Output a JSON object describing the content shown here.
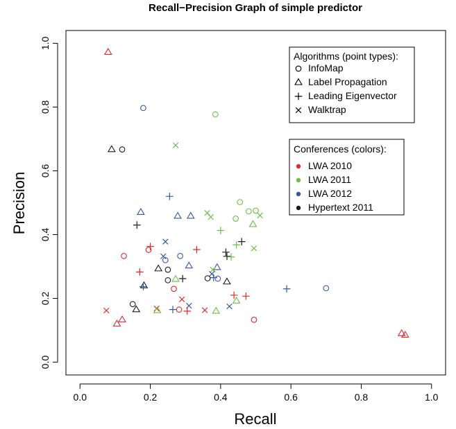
{
  "chart_data": {
    "type": "scatter",
    "title": "Recall−Precision Graph of simple predictor",
    "xlabel": "Recall",
    "ylabel": "Precision",
    "xlim": [
      -0.04,
      1.04
    ],
    "ylim": [
      -0.04,
      1.04
    ],
    "xticks": [
      "0.0",
      "0.2",
      "0.4",
      "0.6",
      "0.8",
      "1.0"
    ],
    "yticks": [
      "0.0",
      "0.2",
      "0.4",
      "0.6",
      "0.8",
      "1.0"
    ],
    "grid": false,
    "shape_legend": {
      "title": "Algorithms (point types):",
      "position": "top-right",
      "items": [
        {
          "label": "InfoMap",
          "shape": "circle"
        },
        {
          "label": "Label Propagation",
          "shape": "triangle"
        },
        {
          "label": "Leading Eigenvector",
          "shape": "plus"
        },
        {
          "label": "Walktrap",
          "shape": "cross"
        }
      ]
    },
    "color_legend": {
      "title": "Conferences (colors):",
      "position": "right",
      "items": [
        {
          "label": "LWA 2010",
          "color": "#e8262b"
        },
        {
          "label": "LWA 2011",
          "color": "#6cbf45"
        },
        {
          "label": "LWA 2012",
          "color": "#3557a5"
        },
        {
          "label": "Hypertext 2011",
          "color": "#1a1a1a"
        }
      ]
    },
    "points": [
      {
        "x": 0.08,
        "y": 0.972,
        "shape": "triangle",
        "color": "LWA 2010"
      },
      {
        "x": 0.18,
        "y": 0.797,
        "shape": "circle",
        "color": "LWA 2012"
      },
      {
        "x": 0.385,
        "y": 0.777,
        "shape": "circle",
        "color": "LWA 2011"
      },
      {
        "x": 0.09,
        "y": 0.667,
        "shape": "triangle",
        "color": "Hypertext 2011"
      },
      {
        "x": 0.12,
        "y": 0.667,
        "shape": "circle",
        "color": "Hypertext 2011"
      },
      {
        "x": 0.272,
        "y": 0.68,
        "shape": "cross",
        "color": "LWA 2011"
      },
      {
        "x": 0.255,
        "y": 0.52,
        "shape": "plus",
        "color": "LWA 2012"
      },
      {
        "x": 0.455,
        "y": 0.502,
        "shape": "circle",
        "color": "LWA 2011"
      },
      {
        "x": 0.173,
        "y": 0.47,
        "shape": "triangle",
        "color": "LWA 2012"
      },
      {
        "x": 0.48,
        "y": 0.473,
        "shape": "circle",
        "color": "LWA 2011"
      },
      {
        "x": 0.5,
        "y": 0.475,
        "shape": "circle",
        "color": "LWA 2011"
      },
      {
        "x": 0.362,
        "y": 0.468,
        "shape": "cross",
        "color": "LWA 2011"
      },
      {
        "x": 0.278,
        "y": 0.458,
        "shape": "triangle",
        "color": "LWA 2012"
      },
      {
        "x": 0.315,
        "y": 0.458,
        "shape": "triangle",
        "color": "LWA 2012"
      },
      {
        "x": 0.372,
        "y": 0.455,
        "shape": "cross",
        "color": "LWA 2011"
      },
      {
        "x": 0.512,
        "y": 0.46,
        "shape": "cross",
        "color": "LWA 2011"
      },
      {
        "x": 0.443,
        "y": 0.45,
        "shape": "circle",
        "color": "LWA 2011"
      },
      {
        "x": 0.492,
        "y": 0.432,
        "shape": "triangle",
        "color": "LWA 2011"
      },
      {
        "x": 0.162,
        "y": 0.43,
        "shape": "plus",
        "color": "Hypertext 2011"
      },
      {
        "x": 0.4,
        "y": 0.413,
        "shape": "plus",
        "color": "LWA 2011"
      },
      {
        "x": 0.243,
        "y": 0.378,
        "shape": "cross",
        "color": "LWA 2012"
      },
      {
        "x": 0.46,
        "y": 0.378,
        "shape": "plus",
        "color": "Hypertext 2011"
      },
      {
        "x": 0.445,
        "y": 0.368,
        "shape": "plus",
        "color": "LWA 2011"
      },
      {
        "x": 0.195,
        "y": 0.352,
        "shape": "circle",
        "color": "LWA 2010"
      },
      {
        "x": 0.2,
        "y": 0.363,
        "shape": "plus",
        "color": "LWA 2010"
      },
      {
        "x": 0.332,
        "y": 0.353,
        "shape": "plus",
        "color": "LWA 2010"
      },
      {
        "x": 0.415,
        "y": 0.345,
        "shape": "plus",
        "color": "Hypertext 2011"
      },
      {
        "x": 0.495,
        "y": 0.357,
        "shape": "cross",
        "color": "LWA 2011"
      },
      {
        "x": 0.125,
        "y": 0.333,
        "shape": "circle",
        "color": "LWA 2010"
      },
      {
        "x": 0.285,
        "y": 0.333,
        "shape": "circle",
        "color": "LWA 2012"
      },
      {
        "x": 0.237,
        "y": 0.332,
        "shape": "cross",
        "color": "LWA 2012"
      },
      {
        "x": 0.243,
        "y": 0.32,
        "shape": "circle",
        "color": "LWA 2012"
      },
      {
        "x": 0.418,
        "y": 0.332,
        "shape": "plus",
        "color": "Hypertext 2011"
      },
      {
        "x": 0.43,
        "y": 0.33,
        "shape": "plus",
        "color": "LWA 2011"
      },
      {
        "x": 0.31,
        "y": 0.302,
        "shape": "triangle",
        "color": "LWA 2012"
      },
      {
        "x": 0.223,
        "y": 0.293,
        "shape": "triangle",
        "color": "Hypertext 2011"
      },
      {
        "x": 0.25,
        "y": 0.29,
        "shape": "circle",
        "color": "Hypertext 2011"
      },
      {
        "x": 0.39,
        "y": 0.297,
        "shape": "triangle",
        "color": "LWA 2012"
      },
      {
        "x": 0.17,
        "y": 0.283,
        "shape": "plus",
        "color": "LWA 2010"
      },
      {
        "x": 0.378,
        "y": 0.29,
        "shape": "cross",
        "color": "LWA 2011"
      },
      {
        "x": 0.375,
        "y": 0.277,
        "shape": "cross",
        "color": "LWA 2012"
      },
      {
        "x": 0.38,
        "y": 0.265,
        "shape": "plus",
        "color": "LWA 2012"
      },
      {
        "x": 0.363,
        "y": 0.263,
        "shape": "circle",
        "color": "Hypertext 2011"
      },
      {
        "x": 0.392,
        "y": 0.262,
        "shape": "circle",
        "color": "LWA 2012"
      },
      {
        "x": 0.25,
        "y": 0.257,
        "shape": "circle",
        "color": "Hypertext 2011"
      },
      {
        "x": 0.272,
        "y": 0.26,
        "shape": "triangle",
        "color": "LWA 2011"
      },
      {
        "x": 0.292,
        "y": 0.262,
        "shape": "plus",
        "color": "Hypertext 2011"
      },
      {
        "x": 0.418,
        "y": 0.252,
        "shape": "triangle",
        "color": "Hypertext 2011"
      },
      {
        "x": 0.182,
        "y": 0.24,
        "shape": "triangle",
        "color": "Hypertext 2011"
      },
      {
        "x": 0.18,
        "y": 0.237,
        "shape": "plus",
        "color": "LWA 2012"
      },
      {
        "x": 0.267,
        "y": 0.23,
        "shape": "circle",
        "color": "LWA 2010"
      },
      {
        "x": 0.588,
        "y": 0.23,
        "shape": "plus",
        "color": "LWA 2012"
      },
      {
        "x": 0.7,
        "y": 0.232,
        "shape": "circle",
        "color": "LWA 2012"
      },
      {
        "x": 0.438,
        "y": 0.21,
        "shape": "plus",
        "color": "LWA 2010"
      },
      {
        "x": 0.472,
        "y": 0.207,
        "shape": "plus",
        "color": "LWA 2010"
      },
      {
        "x": 0.29,
        "y": 0.197,
        "shape": "cross",
        "color": "LWA 2010"
      },
      {
        "x": 0.445,
        "y": 0.192,
        "shape": "triangle",
        "color": "LWA 2011"
      },
      {
        "x": 0.15,
        "y": 0.182,
        "shape": "circle",
        "color": "Hypertext 2011"
      },
      {
        "x": 0.425,
        "y": 0.175,
        "shape": "cross",
        "color": "LWA 2012"
      },
      {
        "x": 0.31,
        "y": 0.177,
        "shape": "cross",
        "color": "LWA 2012"
      },
      {
        "x": 0.218,
        "y": 0.168,
        "shape": "cross",
        "color": "LWA 2010"
      },
      {
        "x": 0.16,
        "y": 0.165,
        "shape": "triangle",
        "color": "Hypertext 2011"
      },
      {
        "x": 0.22,
        "y": 0.162,
        "shape": "triangle",
        "color": "LWA 2011"
      },
      {
        "x": 0.264,
        "y": 0.165,
        "shape": "plus",
        "color": "LWA 2012"
      },
      {
        "x": 0.282,
        "y": 0.165,
        "shape": "circle",
        "color": "LWA 2010"
      },
      {
        "x": 0.305,
        "y": 0.16,
        "shape": "plus",
        "color": "LWA 2010"
      },
      {
        "x": 0.355,
        "y": 0.163,
        "shape": "cross",
        "color": "LWA 2010"
      },
      {
        "x": 0.387,
        "y": 0.16,
        "shape": "triangle",
        "color": "LWA 2011"
      },
      {
        "x": 0.075,
        "y": 0.162,
        "shape": "cross",
        "color": "LWA 2010"
      },
      {
        "x": 0.12,
        "y": 0.133,
        "shape": "triangle",
        "color": "LWA 2010"
      },
      {
        "x": 0.105,
        "y": 0.12,
        "shape": "triangle",
        "color": "LWA 2010"
      },
      {
        "x": 0.495,
        "y": 0.133,
        "shape": "circle",
        "color": "LWA 2010"
      },
      {
        "x": 0.915,
        "y": 0.09,
        "shape": "triangle",
        "color": "LWA 2010"
      },
      {
        "x": 0.925,
        "y": 0.085,
        "shape": "triangle",
        "color": "LWA 2010"
      }
    ]
  }
}
